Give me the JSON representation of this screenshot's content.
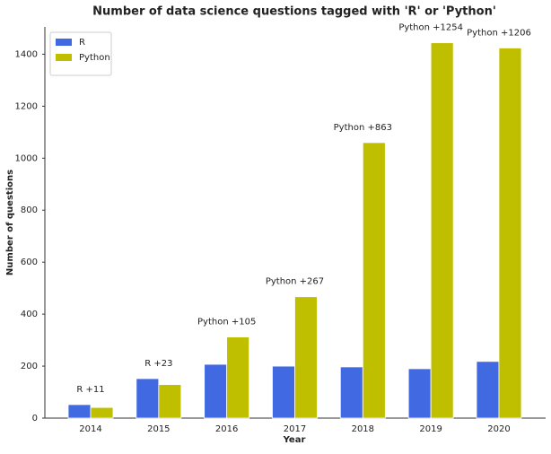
{
  "chart_data": {
    "type": "bar",
    "title": "Number of data science questions tagged with 'R' or 'Python'",
    "x_label": "Year",
    "y_label": "Number of questions",
    "categories": [
      "2014",
      "2015",
      "2016",
      "2017",
      "2018",
      "2019",
      "2020"
    ],
    "series": [
      {
        "name": "R",
        "color": "#4169e1",
        "values": [
          52,
          152,
          207,
          200,
          197,
          190,
          218
        ]
      },
      {
        "name": "Python",
        "color": "#bfbf00",
        "values": [
          41,
          129,
          312,
          467,
          1060,
          1444,
          1424
        ]
      }
    ],
    "annotations": [
      "R +11",
      "R +23",
      "Python +105",
      "Python +267",
      "Python +863",
      "Python +1254",
      "Python +1206"
    ],
    "ylim": [
      0,
      1505
    ],
    "yticks": [
      0,
      200,
      400,
      600,
      800,
      1000,
      1200,
      1400
    ],
    "grid": false,
    "legend": "upper left"
  }
}
